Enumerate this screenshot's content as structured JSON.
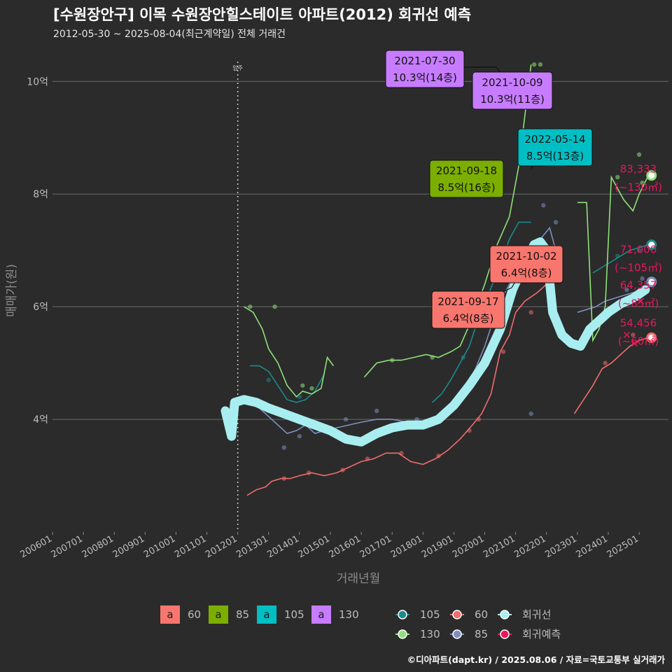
{
  "header": {
    "title": "[수원장안구] 이목 수원장안힐스테이트 아파트(2012) 회귀선 예측",
    "subtitle": "2012-05-30 ~ 2025-08-04(최근계약일) 전체 거래건"
  },
  "footer": {
    "credit": "©디아파트(dapt.kr) / 2025.08.06 / 자료=국토교통부 실거래가"
  },
  "colors": {
    "a60": "#f8766d",
    "a85": "#7cae00",
    "a105": "#00bfc4",
    "a130": "#c77cff",
    "s60": "#f06c6c",
    "s85": "#7c8fbf",
    "s105": "#1d8a8a",
    "s130": "#8fe07a",
    "regression": "#a8eef0",
    "forecast": "#e8175d"
  },
  "chart_data": {
    "type": "line",
    "title": "[수원장안구] 이목 수원장안힐스테이트 아파트(2012) 회귀선 예측",
    "xlabel": "거래년월",
    "ylabel": "매매가(원)",
    "xlim": [
      2006.0,
      2025.95
    ],
    "ylim": [
      2.0,
      10.6
    ],
    "y_unit": "억",
    "x_ticks": [
      "200601",
      "200701",
      "200801",
      "200901",
      "201001",
      "201101",
      "201201",
      "201301",
      "201401",
      "201501",
      "201601",
      "201701",
      "201801",
      "201901",
      "202001",
      "202101",
      "202201",
      "202301",
      "202401",
      "202501"
    ],
    "y_ticks": [
      {
        "value": 4,
        "label": "4억"
      },
      {
        "value": 6,
        "label": "6억"
      },
      {
        "value": 8,
        "label": "8억"
      },
      {
        "value": 10,
        "label": "10억"
      }
    ],
    "move_in": {
      "x": 2012.0,
      "label": "입주"
    },
    "series": [
      {
        "name": "60",
        "color_key": "s60",
        "points": [
          [
            2012.3,
            2.65
          ],
          [
            2012.6,
            2.75
          ],
          [
            2012.9,
            2.8
          ],
          [
            2013.1,
            2.9
          ],
          [
            2013.4,
            2.95
          ],
          [
            2013.7,
            2.95
          ],
          [
            2014.0,
            3.0
          ],
          [
            2014.4,
            3.05
          ],
          [
            2014.8,
            3.0
          ],
          [
            2015.2,
            3.05
          ],
          [
            2015.6,
            3.15
          ],
          [
            2016.0,
            3.25
          ],
          [
            2016.4,
            3.3
          ],
          [
            2016.8,
            3.4
          ],
          [
            2017.2,
            3.4
          ],
          [
            2017.6,
            3.25
          ],
          [
            2018.0,
            3.2
          ],
          [
            2018.4,
            3.3
          ],
          [
            2018.8,
            3.45
          ],
          [
            2019.2,
            3.65
          ],
          [
            2019.6,
            3.9
          ],
          [
            2019.9,
            4.1
          ],
          [
            2020.2,
            4.45
          ],
          [
            2020.5,
            5.2
          ],
          [
            2020.8,
            5.5
          ],
          [
            2021.0,
            5.9
          ],
          [
            2021.3,
            6.1
          ],
          [
            2021.7,
            6.25
          ],
          [
            2022.0,
            6.4
          ],
          [
            2022.4,
            6.6
          ]
        ]
      },
      {
        "name": "60",
        "color_key": "s60",
        "points": [
          [
            2022.9,
            4.1
          ],
          [
            2023.2,
            4.35
          ],
          [
            2023.5,
            4.6
          ],
          [
            2023.8,
            4.9
          ],
          [
            2024.1,
            5.0
          ],
          [
            2024.4,
            5.15
          ],
          [
            2024.7,
            5.3
          ],
          [
            2025.0,
            5.4
          ],
          [
            2025.3,
            5.45
          ]
        ]
      },
      {
        "name": "85",
        "color_key": "s85",
        "points": [
          [
            2012.7,
            4.2
          ],
          [
            2013.0,
            4.05
          ],
          [
            2013.3,
            3.9
          ],
          [
            2013.6,
            3.75
          ],
          [
            2013.9,
            3.8
          ],
          [
            2014.2,
            3.9
          ],
          [
            2014.5,
            3.75
          ],
          [
            2014.8,
            3.8
          ],
          [
            2015.2,
            3.85
          ],
          [
            2015.6,
            3.9
          ],
          [
            2016.0,
            3.95
          ],
          [
            2016.5,
            4.0
          ],
          [
            2017.0,
            4.0
          ],
          [
            2017.5,
            3.95
          ],
          [
            2018.0,
            3.95
          ],
          [
            2018.5,
            4.05
          ],
          [
            2018.9,
            4.2
          ],
          [
            2019.3,
            4.5
          ],
          [
            2019.7,
            4.9
          ],
          [
            2020.0,
            5.3
          ],
          [
            2020.3,
            5.8
          ],
          [
            2020.6,
            6.2
          ],
          [
            2020.9,
            6.5
          ],
          [
            2021.2,
            6.8
          ],
          [
            2021.5,
            7.0
          ],
          [
            2021.8,
            7.2
          ],
          [
            2022.1,
            7.4
          ],
          [
            2022.3,
            7.0
          ]
        ]
      },
      {
        "name": "85",
        "color_key": "s85",
        "points": [
          [
            2023.0,
            5.9
          ],
          [
            2023.3,
            5.95
          ],
          [
            2023.6,
            6.0
          ],
          [
            2023.9,
            6.1
          ],
          [
            2024.2,
            6.15
          ],
          [
            2024.5,
            6.2
          ],
          [
            2024.8,
            6.25
          ],
          [
            2025.1,
            6.3
          ]
        ]
      },
      {
        "name": "105",
        "color_key": "s105",
        "points": [
          [
            2012.4,
            4.95
          ],
          [
            2012.7,
            4.95
          ],
          [
            2013.0,
            4.85
          ],
          [
            2013.3,
            4.6
          ],
          [
            2013.6,
            4.35
          ],
          [
            2013.9,
            4.3
          ],
          [
            2014.2,
            4.35
          ],
          [
            2014.5,
            4.5
          ],
          [
            2014.8,
            4.8
          ]
        ]
      },
      {
        "name": "105",
        "color_key": "s105",
        "points": [
          [
            2018.3,
            4.3
          ],
          [
            2018.6,
            4.45
          ],
          [
            2018.9,
            4.7
          ],
          [
            2019.2,
            5.0
          ],
          [
            2019.5,
            5.3
          ],
          [
            2019.8,
            5.8
          ],
          [
            2020.1,
            6.2
          ],
          [
            2020.4,
            6.6
          ],
          [
            2020.8,
            7.2
          ],
          [
            2021.1,
            7.5
          ],
          [
            2021.5,
            7.5
          ]
        ]
      },
      {
        "name": "105",
        "color_key": "s105",
        "points": [
          [
            2022.0,
            8.5
          ],
          [
            2022.3,
            8.5
          ],
          [
            2022.6,
            8.5
          ]
        ]
      },
      {
        "name": "105",
        "color_key": "s105",
        "points": [
          [
            2023.5,
            6.6
          ],
          [
            2023.8,
            6.7
          ],
          [
            2024.1,
            6.8
          ],
          [
            2024.4,
            6.9
          ],
          [
            2024.7,
            7.0
          ],
          [
            2025.0,
            7.05
          ],
          [
            2025.3,
            7.1
          ]
        ]
      },
      {
        "name": "130",
        "color_key": "s130",
        "points": [
          [
            2012.2,
            6.0
          ],
          [
            2012.5,
            5.9
          ],
          [
            2012.8,
            5.6
          ],
          [
            2013.0,
            5.25
          ],
          [
            2013.3,
            5.0
          ],
          [
            2013.6,
            4.6
          ],
          [
            2013.9,
            4.4
          ],
          [
            2014.1,
            4.5
          ],
          [
            2014.4,
            4.45
          ],
          [
            2014.7,
            4.55
          ],
          [
            2014.9,
            5.1
          ],
          [
            2015.1,
            4.95
          ]
        ]
      },
      {
        "name": "130",
        "color_key": "s130",
        "points": [
          [
            2016.1,
            4.75
          ],
          [
            2016.5,
            5.0
          ],
          [
            2016.9,
            5.05
          ],
          [
            2017.3,
            5.05
          ],
          [
            2017.7,
            5.1
          ],
          [
            2018.1,
            5.15
          ],
          [
            2018.5,
            5.1
          ],
          [
            2018.9,
            5.2
          ],
          [
            2019.2,
            5.3
          ],
          [
            2019.6,
            5.8
          ],
          [
            2020.0,
            6.4
          ],
          [
            2020.4,
            7.1
          ],
          [
            2020.8,
            7.6
          ],
          [
            2021.1,
            8.5
          ],
          [
            2021.3,
            9.4
          ],
          [
            2021.5,
            10.3
          ]
        ]
      },
      {
        "name": "130",
        "color_key": "s130",
        "points": [
          [
            2023.0,
            7.85
          ],
          [
            2023.3,
            7.85
          ],
          [
            2023.5,
            5.4
          ],
          [
            2023.7,
            5.6
          ],
          [
            2023.9,
            6.0
          ],
          [
            2024.1,
            8.3
          ],
          [
            2024.3,
            8.1
          ],
          [
            2024.5,
            7.9
          ],
          [
            2024.8,
            7.7
          ],
          [
            2025.0,
            8.0
          ],
          [
            2025.3,
            8.33
          ]
        ]
      },
      {
        "name": "회귀선",
        "color_key": "regression",
        "points": [
          [
            2011.6,
            4.15
          ],
          [
            2011.8,
            3.7
          ],
          [
            2011.9,
            4.3
          ],
          [
            2012.2,
            4.35
          ],
          [
            2012.6,
            4.3
          ],
          [
            2013.0,
            4.2
          ],
          [
            2013.5,
            4.1
          ],
          [
            2014.0,
            4.0
          ],
          [
            2014.5,
            3.9
          ],
          [
            2015.0,
            3.8
          ],
          [
            2015.5,
            3.65
          ],
          [
            2016.0,
            3.6
          ],
          [
            2016.5,
            3.75
          ],
          [
            2017.0,
            3.85
          ],
          [
            2017.5,
            3.9
          ],
          [
            2018.0,
            3.9
          ],
          [
            2018.5,
            4.0
          ],
          [
            2019.0,
            4.25
          ],
          [
            2019.5,
            4.6
          ],
          [
            2020.0,
            5.0
          ],
          [
            2020.5,
            5.6
          ],
          [
            2020.9,
            6.3
          ],
          [
            2021.3,
            6.8
          ],
          [
            2021.6,
            7.1
          ],
          [
            2021.8,
            7.15
          ],
          [
            2022.0,
            7.0
          ],
          [
            2022.2,
            5.9
          ],
          [
            2022.5,
            5.5
          ],
          [
            2022.8,
            5.35
          ],
          [
            2023.1,
            5.3
          ],
          [
            2023.4,
            5.6
          ],
          [
            2023.7,
            5.75
          ],
          [
            2024.0,
            5.9
          ],
          [
            2024.4,
            6.05
          ],
          [
            2024.8,
            6.15
          ],
          [
            2025.2,
            6.3
          ]
        ]
      }
    ],
    "scatter_points": [
      {
        "key": "s60",
        "x": 2019.5,
        "y": 3.8
      },
      {
        "key": "s60",
        "x": 2019.8,
        "y": 4.0
      },
      {
        "key": "s60",
        "x": 2018.5,
        "y": 3.35
      },
      {
        "key": "s60",
        "x": 2017.3,
        "y": 3.4
      },
      {
        "key": "s60",
        "x": 2016.2,
        "y": 3.3
      },
      {
        "key": "s60",
        "x": 2015.4,
        "y": 3.1
      },
      {
        "key": "s60",
        "x": 2014.3,
        "y": 3.05
      },
      {
        "key": "s60",
        "x": 2013.5,
        "y": 2.95
      },
      {
        "key": "s60",
        "x": 2020.6,
        "y": 5.2
      },
      {
        "key": "s60",
        "x": 2021.5,
        "y": 5.9
      },
      {
        "key": "s60",
        "x": 2024.8,
        "y": 5.5
      },
      {
        "key": "s60",
        "x": 2023.9,
        "y": 5.0
      },
      {
        "key": "s85",
        "x": 2013.5,
        "y": 3.5
      },
      {
        "key": "s85",
        "x": 2014.0,
        "y": 3.7
      },
      {
        "key": "s85",
        "x": 2015.5,
        "y": 4.0
      },
      {
        "key": "s85",
        "x": 2016.5,
        "y": 4.15
      },
      {
        "key": "s85",
        "x": 2017.8,
        "y": 4.0
      },
      {
        "key": "s85",
        "x": 2019.0,
        "y": 4.2
      },
      {
        "key": "s85",
        "x": 2020.5,
        "y": 5.5
      },
      {
        "key": "s85",
        "x": 2021.9,
        "y": 7.8
      },
      {
        "key": "s85",
        "x": 2022.3,
        "y": 7.5
      },
      {
        "key": "s85",
        "x": 2024.6,
        "y": 6.3
      },
      {
        "key": "s85",
        "x": 2025.1,
        "y": 6.5
      },
      {
        "key": "s85",
        "x": 2021.5,
        "y": 4.1
      },
      {
        "key": "s105",
        "x": 2013.0,
        "y": 4.7
      },
      {
        "key": "s105",
        "x": 2014.0,
        "y": 4.4
      },
      {
        "key": "s105",
        "x": 2019.3,
        "y": 5.1
      },
      {
        "key": "s105",
        "x": 2020.1,
        "y": 6.0
      },
      {
        "key": "s105",
        "x": 2024.3,
        "y": 6.9
      },
      {
        "key": "s105",
        "x": 2025.0,
        "y": 7.0
      },
      {
        "key": "s130",
        "x": 2012.4,
        "y": 6.0
      },
      {
        "key": "s130",
        "x": 2013.2,
        "y": 6.0
      },
      {
        "key": "s130",
        "x": 2014.1,
        "y": 4.6
      },
      {
        "key": "s130",
        "x": 2014.4,
        "y": 4.55
      },
      {
        "key": "s130",
        "x": 2017.0,
        "y": 5.05
      },
      {
        "key": "s130",
        "x": 2018.3,
        "y": 5.1
      },
      {
        "key": "s130",
        "x": 2019.7,
        "y": 5.9
      },
      {
        "key": "s130",
        "x": 2021.6,
        "y": 10.3
      },
      {
        "key": "s130",
        "x": 2021.8,
        "y": 10.3
      },
      {
        "key": "s130",
        "x": 2024.3,
        "y": 8.3
      },
      {
        "key": "s130",
        "x": 2025.0,
        "y": 8.7
      },
      {
        "key": "s130",
        "x": 2025.1,
        "y": 8.2
      }
    ],
    "endpoints": [
      {
        "key": "s130",
        "x": 2025.4,
        "y": 8.33
      },
      {
        "key": "s105",
        "x": 2025.4,
        "y": 7.1
      },
      {
        "key": "s85",
        "x": 2025.4,
        "y": 6.44
      },
      {
        "key": "s60",
        "x": 2025.4,
        "y": 5.45
      }
    ],
    "forecast_marks": [
      {
        "x": 2024.6,
        "y": 5.5
      },
      {
        "x": 2024.85,
        "y": 5.35
      },
      {
        "x": 2025.05,
        "y": 6.1
      }
    ],
    "end_labels": [
      {
        "value": "83,333",
        "area": "(~130㎡)",
        "y": 8.33
      },
      {
        "value": "71,000",
        "area": "(~105㎡)",
        "y": 6.9
      },
      {
        "value": "64,357",
        "area": "(~85㎡)",
        "y": 6.27
      },
      {
        "value": "54,456",
        "area": "(~60㎡)",
        "y": 5.6
      }
    ],
    "callouts": [
      {
        "date": "2021-07-30",
        "price": "10.3억(14층)",
        "area": "130",
        "x": 2021.58,
        "y": 10.3
      },
      {
        "date": "2021-10-09",
        "price": "10.3억(11층)",
        "area": "130",
        "x": 2021.77,
        "y": 10.3
      },
      {
        "date": "2022-05-14",
        "price": "8.5억(13층)",
        "area": "105",
        "x": 2022.37,
        "y": 8.5
      },
      {
        "date": "2021-09-18",
        "price": "8.5억(16층)",
        "area": "85",
        "x": 2021.71,
        "y": 8.5
      },
      {
        "date": "2021-10-02",
        "price": "6.4억(8층)",
        "area": "60",
        "x": 2021.75,
        "y": 6.4
      },
      {
        "date": "2021-09-17",
        "price": "6.4억(8층)",
        "area": "60",
        "x": 2021.71,
        "y": 6.4
      }
    ],
    "legend": {
      "fill_title_items": [
        {
          "label": "60",
          "color_key": "a60"
        },
        {
          "label": "85",
          "color_key": "a85"
        },
        {
          "label": "105",
          "color_key": "a105"
        },
        {
          "label": "130",
          "color_key": "a130"
        }
      ],
      "fill_key_text": "a",
      "line_items": [
        {
          "label": "105",
          "color_key": "s105"
        },
        {
          "label": "60",
          "color_key": "s60"
        },
        {
          "label": "회귀선",
          "color_key": "regression"
        },
        {
          "label": "130",
          "color_key": "s130"
        },
        {
          "label": "85",
          "color_key": "s85"
        },
        {
          "label": "회귀예측",
          "color_key": "forecast"
        }
      ]
    }
  }
}
